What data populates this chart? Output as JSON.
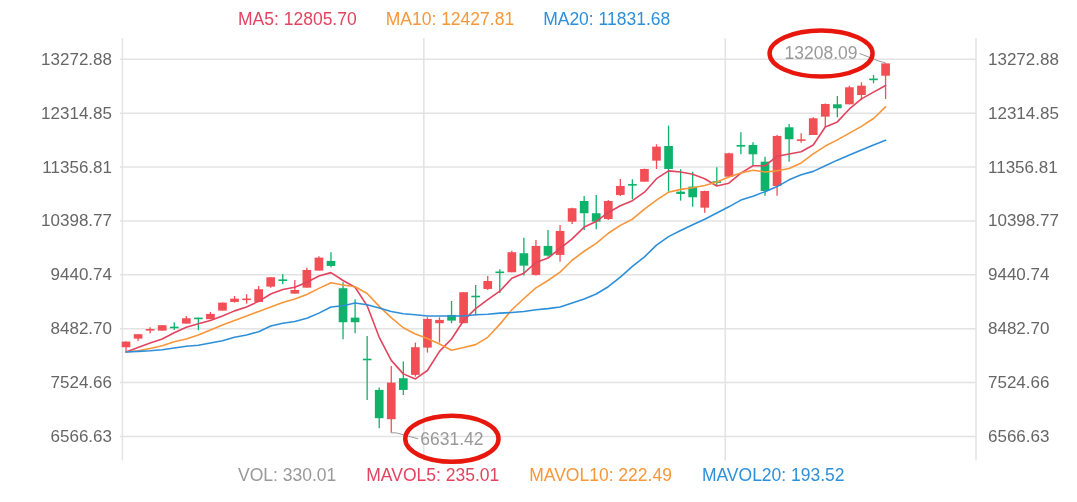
{
  "chart_data": {
    "type": "candlestick",
    "categories": [
      null,
      null,
      null,
      null,
      null,
      null,
      null,
      null,
      null,
      null,
      null,
      null,
      null,
      null,
      null,
      null,
      null,
      null,
      null,
      null,
      null,
      null,
      null,
      null,
      null,
      null,
      null,
      null,
      null,
      null,
      null,
      null,
      null,
      null,
      null,
      null,
      null,
      null,
      null,
      null,
      null,
      null,
      null,
      null,
      null,
      null,
      null,
      null,
      null,
      null,
      null,
      null,
      null,
      null,
      null,
      null,
      null,
      null,
      null,
      null,
      null,
      null,
      null,
      null,
      null,
      null,
      null,
      null,
      null,
      null,
      null
    ],
    "ohlc": [
      [
        8154,
        8260,
        8076,
        8254
      ],
      [
        8307,
        8390,
        8266,
        8385
      ],
      [
        8470,
        8509,
        8403,
        8478
      ],
      [
        8449,
        8550,
        8449,
        8545
      ],
      [
        8520,
        8598,
        8461,
        8510
      ],
      [
        8574,
        8710,
        8574,
        8669
      ],
      [
        8680,
        8680,
        8456,
        8652
      ],
      [
        8652,
        8781,
        8652,
        8746
      ],
      [
        8805,
        8950,
        8805,
        8947
      ],
      [
        8959,
        9066,
        8947,
        9018
      ],
      [
        9010,
        9096,
        8929,
        9020
      ],
      [
        8959,
        9244,
        8959,
        9185
      ],
      [
        9231,
        9398,
        9213,
        9398
      ],
      [
        9360,
        9457,
        9274,
        9350
      ],
      [
        9107,
        9350,
        9107,
        9172
      ],
      [
        9213,
        9568,
        9213,
        9528
      ],
      [
        9516,
        9771,
        9516,
        9747
      ],
      [
        9688,
        9843,
        9576,
        9599
      ],
      [
        9203,
        9310,
        8296,
        8598
      ],
      [
        8680,
        9007,
        8403,
        8598
      ],
      [
        7950,
        8355,
        7217,
        7935
      ],
      [
        7395,
        7436,
        6714,
        6892
      ],
      [
        6874,
        7822,
        6631.42,
        7525
      ],
      [
        7603,
        7898,
        7306,
        7395
      ],
      [
        7662,
        8236,
        7631,
        8154
      ],
      [
        8147,
        8687,
        8058,
        8657
      ],
      [
        8581,
        8687,
        8236,
        8639
      ],
      [
        8728,
        8977,
        8581,
        8627
      ],
      [
        8581,
        9132,
        8581,
        9132
      ],
      [
        9070,
        9261,
        8716,
        9060
      ],
      [
        9190,
        9421,
        9172,
        9332
      ],
      [
        9500,
        9540,
        9120,
        9490
      ],
      [
        9487,
        9871,
        9487,
        9843
      ],
      [
        9825,
        10102,
        9427,
        9604
      ],
      [
        9439,
        10061,
        9427,
        9955
      ],
      [
        9955,
        10239,
        9764,
        9782
      ],
      [
        9795,
        10328,
        9675,
        10221
      ],
      [
        10386,
        10635,
        10346,
        10625
      ],
      [
        10754,
        10843,
        10239,
        10536
      ],
      [
        10536,
        10861,
        10251,
        10386
      ],
      [
        10434,
        10772,
        10416,
        10754
      ],
      [
        10861,
        11145,
        10843,
        11021
      ],
      [
        11055,
        11140,
        10785,
        11045
      ],
      [
        11097,
        11330,
        11097,
        11323
      ],
      [
        11471,
        11762,
        11323,
        11720
      ],
      [
        11732,
        12093,
        10920,
        11323
      ],
      [
        10920,
        11318,
        10760,
        10879
      ],
      [
        11009,
        11275,
        10653,
        10820
      ],
      [
        10635,
        10935,
        10546,
        10932
      ],
      [
        11105,
        11353,
        11039,
        11090
      ],
      [
        11186,
        11610,
        11175,
        11602
      ],
      [
        11750,
        11975,
        11584,
        11720
      ],
      [
        11750,
        11798,
        11394,
        11584
      ],
      [
        11453,
        11542,
        10849,
        10932
      ],
      [
        11021,
        11927,
        10849,
        11910
      ],
      [
        12064,
        12123,
        11453,
        11851
      ],
      [
        11840,
        11958,
        11791,
        11850
      ],
      [
        11927,
        12242,
        11927,
        12224
      ],
      [
        12253,
        12485,
        12064,
        12478
      ],
      [
        12473,
        12621,
        12242,
        12402
      ],
      [
        12473,
        12804,
        12473,
        12775
      ],
      [
        12638,
        12864,
        12549,
        12804
      ],
      [
        12930,
        12994,
        12846,
        12915
      ],
      [
        12981,
        13208.09,
        12567,
        13200
      ],
      null,
      null,
      null,
      null,
      null,
      null,
      null
    ],
    "colors": [
      "#f24e56",
      "#f24e56",
      "#f24e56",
      "#f24e56",
      "#0fb26b",
      "#f24e56",
      "#0fb26b",
      "#f24e56",
      "#f24e56",
      "#f24e56",
      "#f24e56",
      "#f24e56",
      "#f24e56",
      "#0fb26b",
      "#f24e56",
      "#f24e56",
      "#f24e56",
      "#0fb26b",
      "#0fb26b",
      "#0fb26b",
      "#0fb26b",
      "#0fb26b",
      "#f24e56",
      "#0fb26b",
      "#f24e56",
      "#f24e56",
      "#f24e56",
      "#0fb26b",
      "#f24e56",
      "#0fb26b",
      "#f24e56",
      "#0fb26b",
      "#f24e56",
      "#0fb26b",
      "#f24e56",
      "#0fb26b",
      "#f24e56",
      "#f24e56",
      "#0fb26b",
      "#0fb26b",
      "#f24e56",
      "#f24e56",
      "#0fb26b",
      "#f24e56",
      "#f24e56",
      "#0fb26b",
      "#0fb26b",
      "#0fb26b",
      "#f24e56",
      "#0fb26b",
      "#f24e56",
      "#0fb26b",
      "#0fb26b",
      "#0fb26b",
      "#f24e56",
      "#0fb26b",
      "#f24e56",
      "#f24e56",
      "#f24e56",
      "#0fb26b",
      "#f24e56",
      "#f24e56",
      "#0fb26b",
      "#f24e56",
      null,
      null,
      null,
      null,
      null,
      null,
      null
    ],
    "series": [
      {
        "name": "MA5: 12805.70",
        "type": "line",
        "color": "#e2445f",
        "values": [
          8070,
          8150,
          8230,
          8300,
          8410,
          8510,
          8570,
          8630,
          8710,
          8800,
          8870,
          8970,
          9100,
          9180,
          9220,
          9310,
          9420,
          9480,
          9340,
          9220,
          8890,
          8330,
          7920,
          7680,
          7590,
          7740,
          8080,
          8300,
          8630,
          8840,
          9000,
          9150,
          9380,
          9470,
          9660,
          9740,
          9910,
          10080,
          10290,
          10390,
          10550,
          10670,
          10760,
          10910,
          11150,
          11290,
          11270,
          11230,
          11150,
          11020,
          11070,
          11250,
          11380,
          11380,
          11550,
          11590,
          11630,
          11750,
          12070,
          12160,
          12390,
          12570,
          12690,
          12805.7,
          null,
          null,
          null,
          null,
          null,
          null,
          null
        ]
      },
      {
        "name": "MA10: 12427.81",
        "type": "line",
        "color": "#f8963a",
        "values": [
          8070,
          8090,
          8130,
          8180,
          8250,
          8300,
          8370,
          8460,
          8550,
          8630,
          8710,
          8790,
          8870,
          8950,
          9010,
          9090,
          9200,
          9300,
          9260,
          9230,
          9110,
          8880,
          8680,
          8500,
          8390,
          8310,
          8210,
          8100,
          8150,
          8200,
          8330,
          8560,
          8820,
          9020,
          9210,
          9340,
          9490,
          9700,
          9860,
          10000,
          10180,
          10320,
          10430,
          10610,
          10770,
          10910,
          10960,
          10990,
          11030,
          11090,
          11180,
          11250,
          11300,
          11270,
          11290,
          11330,
          11430,
          11590,
          11730,
          11840,
          11960,
          12080,
          12220,
          12427.81,
          null,
          null,
          null,
          null,
          null,
          null,
          null
        ]
      },
      {
        "name": "MA20: 11831.68",
        "type": "line",
        "color": "#2e8fd9",
        "values": [
          8070,
          8080,
          8090,
          8110,
          8140,
          8170,
          8190,
          8230,
          8270,
          8330,
          8370,
          8430,
          8530,
          8580,
          8610,
          8670,
          8760,
          8870,
          8890,
          8940,
          8910,
          8850,
          8790,
          8750,
          8730,
          8710,
          8710,
          8710,
          8710,
          8730,
          8740,
          8760,
          8770,
          8790,
          8820,
          8840,
          8870,
          8940,
          9010,
          9100,
          9230,
          9400,
          9590,
          9760,
          9970,
          10120,
          10230,
          10330,
          10430,
          10540,
          10650,
          10770,
          10840,
          10920,
          11010,
          11130,
          11220,
          11280,
          11380,
          11480,
          11570,
          11660,
          11750,
          11831.68,
          null,
          null,
          null,
          null,
          null,
          null,
          null
        ]
      }
    ],
    "annotations": [
      "6631.42",
      "13208.09",
      "VOL: 330.01",
      "MAVOL5: 235.01",
      "MAVOL10: 222.49",
      "MAVOL20: 193.52"
    ],
    "ylim": [
      6566.63,
      13272.88
    ],
    "yticks": [
      6566.63,
      7524.66,
      {
        "value": 8482.7,
        "label": "8482.70"
      },
      9440.74,
      10398.77,
      11356.81,
      12314.85,
      13272.88
    ],
    "y2lim": [
      6566.63,
      13272.88
    ],
    "y2ticks": [
      6566.63,
      7524.66,
      {
        "value": 8482.7,
        "label": "8482.70"
      },
      9440.74,
      10398.77,
      11356.81,
      12314.85,
      13272.88
    ],
    "grid": true,
    "legend": "top"
  }
}
